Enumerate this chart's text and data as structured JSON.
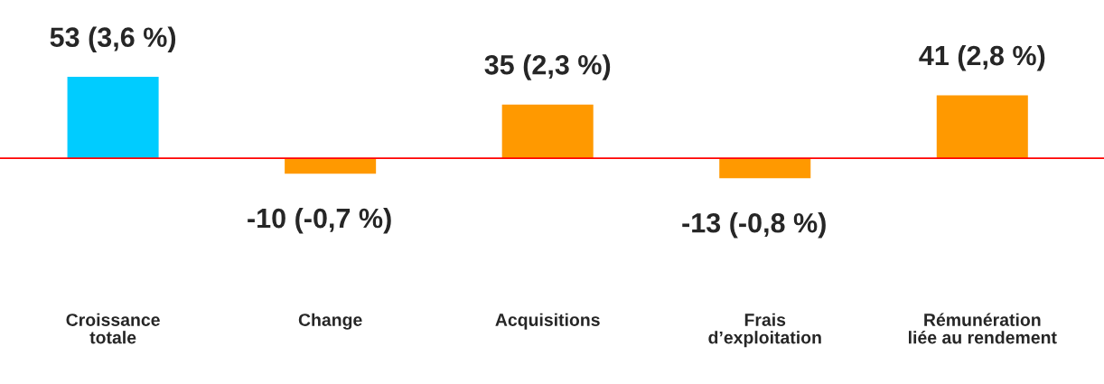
{
  "chart_data": {
    "type": "bar",
    "categories": [
      "Croissance\ntotale",
      "Change",
      "Acquisitions",
      "Frais\nd’exploitation",
      "Rémunération\nliée au rendement"
    ],
    "values": [
      53,
      -10,
      35,
      -13,
      41
    ],
    "colors": [
      "#00ccff",
      "#ff9900",
      "#ff9900",
      "#ff9900",
      "#ff9900"
    ],
    "value_labels": [
      "53 (3,6 %)",
      "-10 (-0,7 %)",
      "35 (2,3 %)",
      "-13 (-0,8 %)",
      "41 (2,8 %)"
    ],
    "ref_lines": [
      {
        "axis": "y",
        "value": 0,
        "color": "#ff0000"
      }
    ],
    "legend": false
  }
}
